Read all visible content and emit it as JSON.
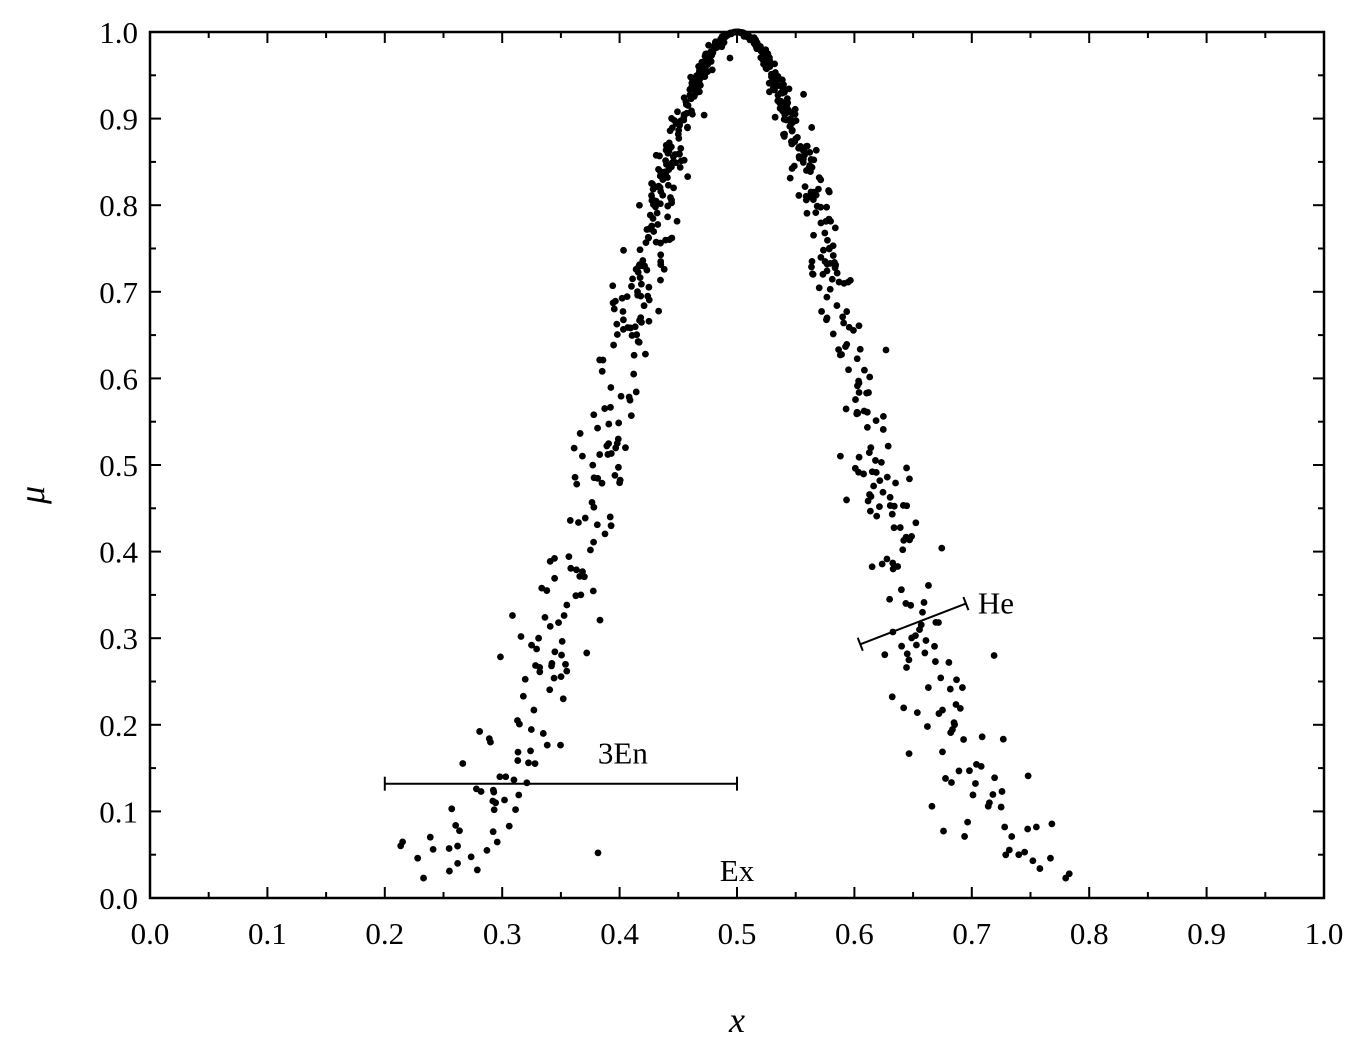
{
  "chart_data": {
    "type": "scatter",
    "title": "",
    "xlabel": "x",
    "ylabel": "μ",
    "xlim": [
      0.0,
      1.0
    ],
    "ylim": [
      0.0,
      1.0
    ],
    "xticks": [
      "0.0",
      "0.1",
      "0.2",
      "0.3",
      "0.4",
      "0.5",
      "0.6",
      "0.7",
      "0.8",
      "0.9",
      "1.0"
    ],
    "yticks": [
      "0.0",
      "0.1",
      "0.2",
      "0.3",
      "0.4",
      "0.5",
      "0.6",
      "0.7",
      "0.8",
      "0.9",
      "1.0"
    ],
    "grid": false,
    "legend": "none",
    "marker_color": "#000000",
    "annotations": {
      "ex": {
        "text": "Ex",
        "x": 0.5,
        "y": 0.03
      },
      "en": {
        "text": "3En",
        "x_from": 0.2,
        "x_to": 0.5,
        "y": 0.132
      },
      "he": {
        "text": "He",
        "x_from": 0.605,
        "y_from": 0.293,
        "x_to": 0.695,
        "y_to": 0.34
      }
    },
    "series": [
      {
        "x": [
          0.228,
          0.233,
          0.257,
          0.262,
          0.287,
          0.289,
          0.303,
          0.298,
          0.321,
          0.335,
          0.355,
          0.37,
          0.381,
          0.396,
          0.412,
          0.441,
          0.468,
          0.489,
          0.5,
          0.511,
          0.532,
          0.559,
          0.588,
          0.604,
          0.619,
          0.63,
          0.645,
          0.66,
          0.675,
          0.701,
          0.714,
          0.728,
          0.745,
          0.767,
          0.78,
          0.783,
          0.282,
          0.292,
          0.318,
          0.342,
          0.367,
          0.405,
          0.425,
          0.455,
          0.478,
          0.522,
          0.545,
          0.575,
          0.595,
          0.633,
          0.658,
          0.682,
          0.708,
          0.734,
          0.758,
          0.306,
          0.316,
          0.331,
          0.352,
          0.378,
          0.392,
          0.418,
          0.435,
          0.45,
          0.462,
          0.487,
          0.518,
          0.538,
          0.553,
          0.565,
          0.583,
          0.611,
          0.623,
          0.642,
          0.669,
          0.693,
          0.715,
          0.74,
          0.358,
          0.385,
          0.438,
          0.432,
          0.446,
          0.262,
          0.278,
          0.313,
          0.327,
          0.64,
          0.652,
          0.692,
          0.748,
          0.755,
          0.719,
          0.325,
          0.348,
          0.372,
          0.41,
          0.472,
          0.494,
          0.506,
          0.528,
          0.562,
          0.59,
          0.614,
          0.648,
          0.663,
          0.687,
          0.725,
          0.29,
          0.338,
          0.398,
          0.422,
          0.458,
          0.542,
          0.578,
          0.602,
          0.628,
          0.672,
          0.698,
          0.752
        ],
        "y": [
          0.046,
          0.023,
          0.103,
          0.04,
          0.055,
          0.184,
          0.14,
          0.14,
          0.133,
          0.19,
          0.262,
          0.371,
          0.431,
          0.488,
          0.605,
          0.799,
          0.931,
          0.988,
          1.0,
          0.991,
          0.933,
          0.806,
          0.627,
          0.509,
          0.441,
          0.345,
          0.282,
          0.283,
          0.217,
          0.119,
          0.106,
          0.082,
          0.053,
          0.046,
          0.023,
          0.028,
          0.123,
          0.112,
          0.233,
          0.268,
          0.35,
          0.52,
          0.666,
          0.852,
          0.966,
          0.968,
          0.891,
          0.735,
          0.61,
          0.38,
          0.33,
          0.191,
          0.152,
          0.071,
          0.034,
          0.083,
          0.302,
          0.3,
          0.23,
          0.558,
          0.44,
          0.695,
          0.735,
          0.882,
          0.905,
          0.983,
          0.985,
          0.917,
          0.867,
          0.81,
          0.734,
          0.561,
          0.503,
          0.413,
          0.273,
          0.183,
          0.11,
          0.05,
          0.436,
          0.479,
          0.726,
          0.791,
          0.82,
          0.06,
          0.126,
          0.205,
          0.217,
          0.356,
          0.303,
          0.243,
          0.141,
          0.082,
          0.28,
          0.292,
          0.318,
          0.283,
          0.557,
          0.904,
          0.97,
          0.995,
          0.96,
          0.861,
          0.671,
          0.52,
          0.338,
          0.243,
          0.252,
          0.105,
          0.18,
          0.355,
          0.525,
          0.628,
          0.833,
          0.907,
          0.817,
          0.559,
          0.486,
          0.213,
          0.147,
          0.043
        ]
      }
    ],
    "dense_band": {
      "center": 0.5,
      "sigma": 0.1,
      "point_count": 700,
      "seed": 7
    }
  }
}
